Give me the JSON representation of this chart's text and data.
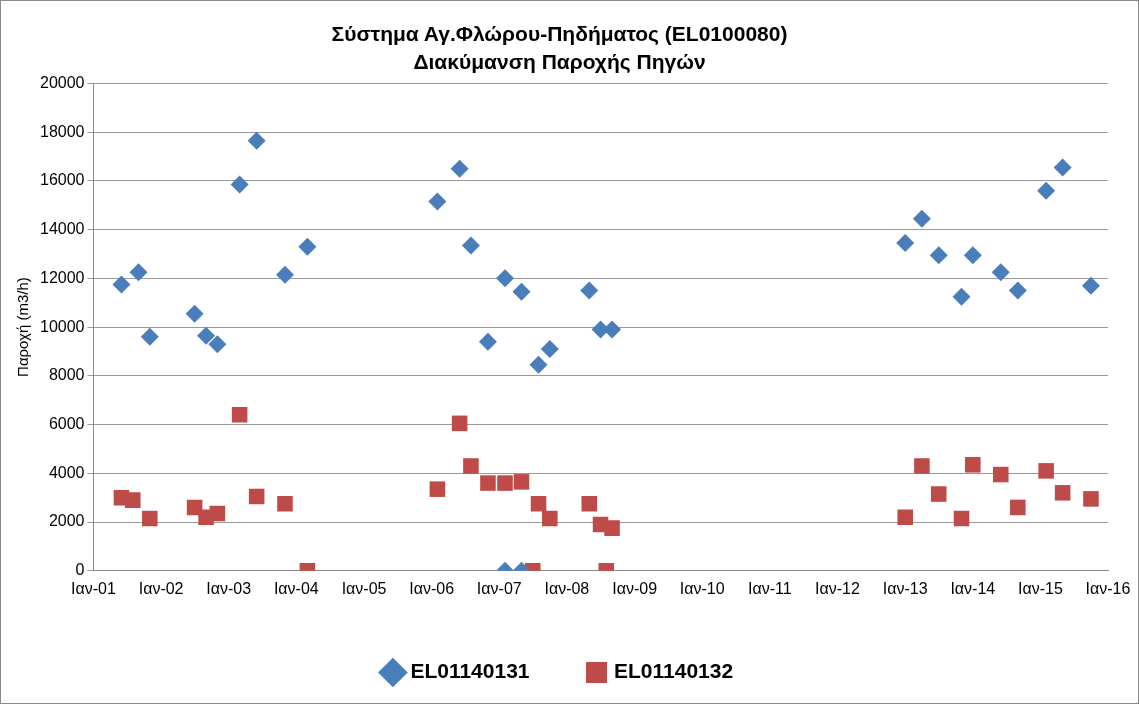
{
  "chart_data": {
    "type": "scatter",
    "title": "Σύστημα Αγ.Φλώρου-Πηδήματος (EL0100080)",
    "subtitle": "Διακύμανση Παροχής Πηγών",
    "ylabel": "Παροχή (m3/h)",
    "xlim": [
      "2001-01-01",
      "2016-01-01"
    ],
    "xticks": [
      {
        "value": "2001-01-01",
        "label": "Ιαν-01"
      },
      {
        "value": "2002-01-01",
        "label": "Ιαν-02"
      },
      {
        "value": "2003-01-01",
        "label": "Ιαν-03"
      },
      {
        "value": "2004-01-01",
        "label": "Ιαν-04"
      },
      {
        "value": "2005-01-01",
        "label": "Ιαν-05"
      },
      {
        "value": "2006-01-01",
        "label": "Ιαν-06"
      },
      {
        "value": "2007-01-01",
        "label": "Ιαν-07"
      },
      {
        "value": "2008-01-01",
        "label": "Ιαν-08"
      },
      {
        "value": "2009-01-01",
        "label": "Ιαν-09"
      },
      {
        "value": "2010-01-01",
        "label": "Ιαν-10"
      },
      {
        "value": "2011-01-01",
        "label": "Ιαν-11"
      },
      {
        "value": "2012-01-01",
        "label": "Ιαν-12"
      },
      {
        "value": "2013-01-01",
        "label": "Ιαν-13"
      },
      {
        "value": "2014-01-01",
        "label": "Ιαν-14"
      },
      {
        "value": "2015-01-01",
        "label": "Ιαν-15"
      },
      {
        "value": "2016-01-01",
        "label": "Ιαν-16"
      }
    ],
    "ylim": [
      0,
      20000
    ],
    "yticks": [
      0,
      2000,
      4000,
      6000,
      8000,
      10000,
      12000,
      14000,
      16000,
      18000,
      20000
    ],
    "grid": "y",
    "legend": "bottom",
    "series": [
      {
        "name": "EL01140131",
        "color": "#4a7ebb",
        "marker": "diamond",
        "x": [
          "2001-06",
          "2001-09",
          "2001-11",
          "2002-07",
          "2002-09",
          "2002-11",
          "2003-03",
          "2003-06",
          "2003-11",
          "2004-03",
          "2006-02",
          "2006-06",
          "2006-08",
          "2006-11",
          "2007-02",
          "2007-05",
          "2007-08",
          "2007-10",
          "2008-05",
          "2008-07",
          "2008-09",
          "2007-02",
          "2007-05",
          "2013-01",
          "2013-04",
          "2013-07",
          "2013-11",
          "2014-01",
          "2014-06",
          "2014-09",
          "2015-02",
          "2015-05",
          "2015-10"
        ],
        "values": [
          11750,
          12250,
          9600,
          10550,
          9650,
          9300,
          15850,
          17650,
          12150,
          13300,
          15150,
          16500,
          13350,
          9400,
          12000,
          11450,
          8450,
          9100,
          11500,
          9900,
          9900,
          0,
          0,
          13450,
          14450,
          12950,
          11250,
          12950,
          12250,
          11500,
          15600,
          16550,
          11700
        ]
      },
      {
        "name": "EL01140132",
        "color": "#be4b48",
        "marker": "square",
        "x": [
          "2001-06",
          "2001-08",
          "2001-11",
          "2002-07",
          "2002-09",
          "2002-11",
          "2003-03",
          "2003-06",
          "2003-11",
          "2004-03",
          "2006-02",
          "2006-06",
          "2006-08",
          "2006-11",
          "2007-02",
          "2007-05",
          "2007-08",
          "2007-10",
          "2007-07",
          "2008-05",
          "2008-07",
          "2008-09",
          "2008-08",
          "2013-01",
          "2013-04",
          "2013-07",
          "2013-11",
          "2014-01",
          "2014-06",
          "2014-09",
          "2015-02",
          "2015-05",
          "2015-10"
        ],
        "values": [
          3000,
          2900,
          2150,
          2600,
          2200,
          2350,
          6400,
          3050,
          2750,
          0,
          3350,
          6050,
          4300,
          3600,
          3600,
          3650,
          2750,
          2150,
          0,
          2750,
          1900,
          1750,
          0,
          2200,
          4300,
          3150,
          2150,
          4350,
          3950,
          2600,
          4100,
          3200,
          2950
        ]
      }
    ]
  }
}
